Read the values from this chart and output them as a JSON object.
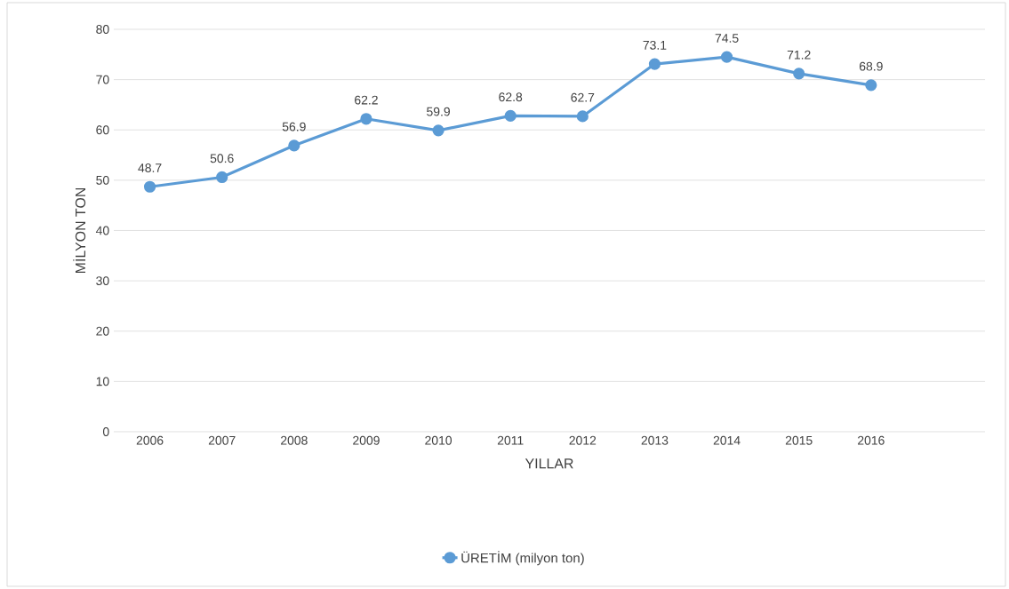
{
  "chart_data": {
    "type": "line",
    "xlabel": "YILLAR",
    "ylabel": "MİLYON TON",
    "categories": [
      "2006",
      "2007",
      "2008",
      "2009",
      "2010",
      "2011",
      "2012",
      "2013",
      "2014",
      "2015",
      "2016"
    ],
    "series": [
      {
        "name": "ÜRETİM (milyon ton)",
        "color": "#5b9bd5",
        "values": [
          48.7,
          50.6,
          56.9,
          62.2,
          59.9,
          62.8,
          62.7,
          73.1,
          74.5,
          71.2,
          68.9
        ]
      }
    ],
    "ylim": [
      0,
      80
    ],
    "yticks": [
      0,
      10,
      20,
      30,
      40,
      50,
      60,
      70,
      80
    ],
    "grid": "y",
    "legend": "bottom",
    "marker": "circle",
    "line_style": "solid",
    "data_labels": true
  }
}
